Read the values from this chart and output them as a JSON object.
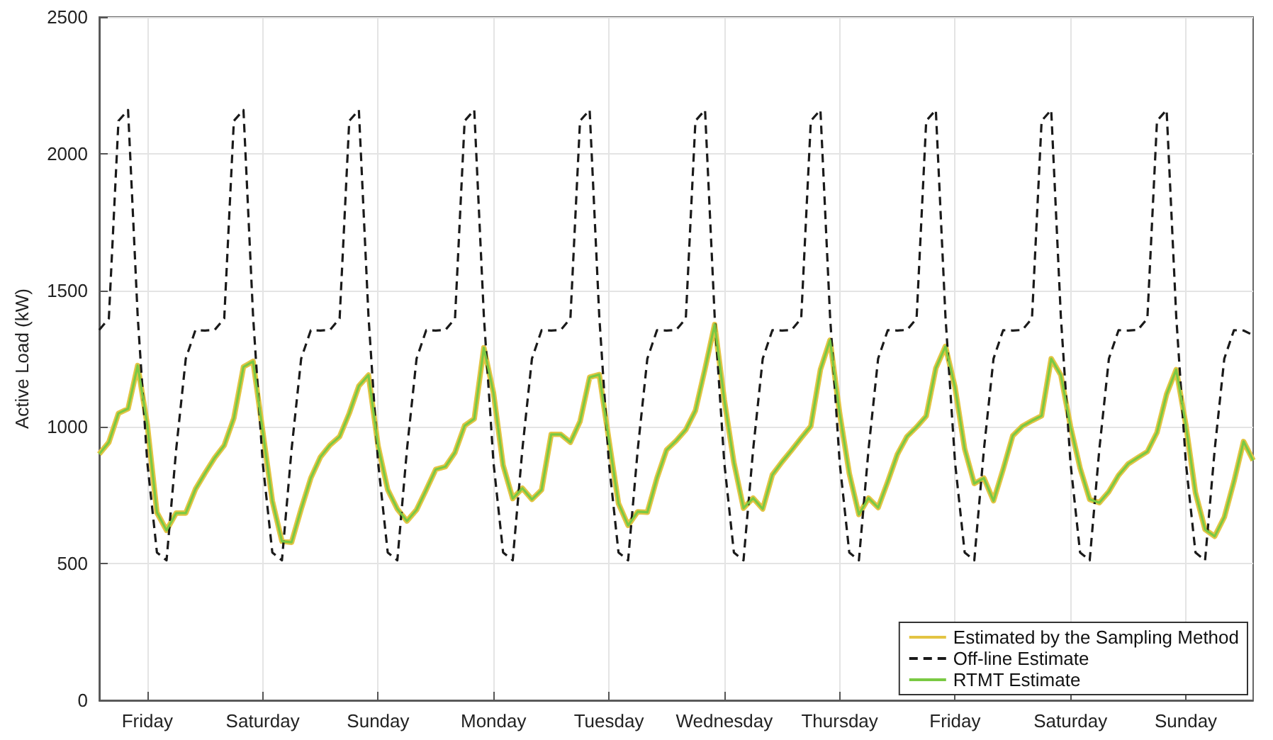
{
  "chart_data": {
    "type": "line",
    "ylabel": "Active Load (kW)",
    "categories": [
      null,
      null,
      null,
      null,
      null,
      "Friday",
      null,
      null,
      null,
      null,
      null,
      null,
      null,
      null,
      null,
      null,
      null,
      "Saturday",
      null,
      null,
      null,
      null,
      null,
      null,
      null,
      null,
      null,
      null,
      null,
      "Sunday",
      null,
      null,
      null,
      null,
      null,
      null,
      null,
      null,
      null,
      null,
      null,
      "Monday",
      null,
      null,
      null,
      null,
      null,
      null,
      null,
      null,
      null,
      null,
      null,
      "Tuesday",
      null,
      null,
      null,
      null,
      null,
      null,
      null,
      null,
      null,
      null,
      null,
      "Wednesday",
      null,
      null,
      null,
      null,
      null,
      null,
      null,
      null,
      null,
      null,
      null,
      "Thursday",
      null,
      null,
      null,
      null,
      null,
      null,
      null,
      null,
      null,
      null,
      null,
      "Friday",
      null,
      null,
      null,
      null,
      null,
      null,
      null,
      null,
      null,
      null,
      null,
      "Saturday",
      null,
      null,
      null,
      null,
      null,
      null,
      null,
      null,
      null,
      null,
      null,
      "Sunday",
      null,
      null,
      null,
      null,
      null,
      null,
      null
    ],
    "ylim": [
      0,
      2500
    ],
    "yticks": [
      0,
      500,
      1000,
      1500,
      2000,
      2500
    ],
    "grid": true,
    "legend": "bottom right",
    "marker": "none",
    "series": [
      {
        "name": "Estimated by the Sampling Method",
        "color": "#e3c443",
        "line_style": "solid",
        "values": [
          901,
          944,
          1050,
          1067,
          1225,
          1008,
          687,
          622,
          685,
          685,
          772,
          831,
          887,
          933,
          1032,
          1220,
          1240,
          985,
          730,
          582,
          578,
          700,
          813,
          890,
          934,
          965,
          1050,
          1150,
          1190,
          930,
          771,
          700,
          656,
          697,
          770,
          845,
          855,
          907,
          1005,
          1030,
          1290,
          1125,
          860,
          738,
          776,
          735,
          770,
          973,
          973,
          944,
          1020,
          1182,
          1192,
          953,
          720,
          640,
          690,
          688,
          813,
          916,
          950,
          990,
          1060,
          1213,
          1375,
          1100,
          870,
          703,
          740,
          700,
          825,
          872,
          915,
          960,
          1003,
          1210,
          1318,
          1050,
          830,
          680,
          740,
          705,
          800,
          900,
          965,
          1000,
          1040,
          1215,
          1295,
          1145,
          920,
          793,
          813,
          730,
          845,
          968,
          1003,
          1023,
          1041,
          1250,
          1190,
          1003,
          850,
          735,
          723,
          764,
          823,
          865,
          888,
          910,
          980,
          1120,
          1210,
          1008,
          760,
          625,
          600,
          670,
          800,
          947,
          878
        ]
      },
      {
        "name": "Off-line Estimate",
        "color": "#1a1a1a",
        "line_style": "dashed",
        "values": [
          1355,
          1397,
          2120,
          2160,
          1405,
          870,
          541,
          512,
          917,
          1250,
          1354,
          1353,
          1355,
          1397,
          2120,
          2160,
          1405,
          870,
          541,
          512,
          917,
          1250,
          1354,
          1353,
          1355,
          1397,
          2120,
          2160,
          1405,
          870,
          541,
          512,
          917,
          1250,
          1354,
          1353,
          1355,
          1397,
          2120,
          2160,
          1405,
          870,
          541,
          512,
          917,
          1250,
          1354,
          1353,
          1355,
          1397,
          2120,
          2160,
          1405,
          870,
          541,
          512,
          917,
          1250,
          1354,
          1353,
          1355,
          1397,
          2120,
          2160,
          1405,
          870,
          541,
          512,
          917,
          1250,
          1354,
          1353,
          1355,
          1397,
          2120,
          2160,
          1405,
          870,
          541,
          512,
          917,
          1250,
          1354,
          1353,
          1355,
          1397,
          2120,
          2160,
          1405,
          870,
          541,
          512,
          917,
          1250,
          1354,
          1353,
          1355,
          1397,
          2120,
          2160,
          1405,
          870,
          541,
          512,
          917,
          1250,
          1354,
          1353,
          1355,
          1397,
          2120,
          2160,
          1405,
          870,
          541,
          512,
          917,
          1250,
          1354,
          1353,
          1336
        ]
      },
      {
        "name": "RTMT Estimate",
        "color": "#7ac943",
        "line_style": "solid",
        "values": [
          901,
          944,
          1050,
          1067,
          1225,
          1008,
          687,
          622,
          685,
          685,
          772,
          831,
          887,
          933,
          1032,
          1220,
          1240,
          985,
          730,
          582,
          578,
          700,
          813,
          890,
          934,
          965,
          1050,
          1150,
          1190,
          930,
          771,
          700,
          656,
          697,
          770,
          845,
          855,
          907,
          1005,
          1030,
          1290,
          1125,
          860,
          738,
          776,
          735,
          770,
          973,
          973,
          944,
          1020,
          1182,
          1192,
          953,
          720,
          640,
          690,
          688,
          813,
          916,
          950,
          990,
          1060,
          1213,
          1375,
          1100,
          870,
          703,
          740,
          700,
          825,
          872,
          915,
          960,
          1003,
          1210,
          1318,
          1050,
          830,
          680,
          740,
          705,
          800,
          900,
          965,
          1000,
          1040,
          1215,
          1295,
          1145,
          920,
          793,
          813,
          730,
          845,
          968,
          1003,
          1023,
          1041,
          1250,
          1190,
          1003,
          850,
          735,
          723,
          764,
          823,
          865,
          888,
          910,
          980,
          1120,
          1210,
          1008,
          760,
          625,
          600,
          670,
          800,
          947,
          878
        ]
      }
    ]
  }
}
